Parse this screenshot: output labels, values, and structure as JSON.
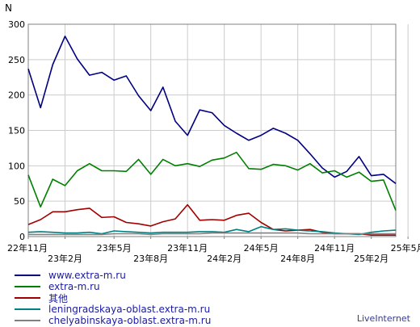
{
  "chart_data": {
    "type": "line",
    "ylabel": "N",
    "ylim": [
      0,
      300
    ],
    "y_ticks": [
      0,
      50,
      100,
      150,
      200,
      250,
      300
    ],
    "grid": true,
    "x_ticks_row1": [
      {
        "i": 0,
        "label": "22年11月"
      },
      {
        "i": 7,
        "label": "23年5月"
      },
      {
        "i": 13,
        "label": "23年11月"
      },
      {
        "i": 19,
        "label": "24年5月"
      },
      {
        "i": 25,
        "label": "24年11月"
      },
      {
        "i": 31,
        "label": "25年5月"
      }
    ],
    "x_ticks_row2": [
      {
        "i": 3,
        "label": "23年2月"
      },
      {
        "i": 10,
        "label": "23年8月"
      },
      {
        "i": 16,
        "label": "24年2月"
      },
      {
        "i": 22,
        "label": "24年8月"
      },
      {
        "i": 28,
        "label": "25年2月"
      }
    ],
    "series": [
      {
        "name": "www.extra-m.ru",
        "color": "#000080",
        "values": [
          237,
          182,
          243,
          283,
          251,
          228,
          232,
          221,
          227,
          199,
          178,
          211,
          163,
          143,
          179,
          175,
          157,
          146,
          136,
          143,
          153,
          146,
          136,
          117,
          97,
          84,
          92,
          113,
          86,
          88,
          75
        ]
      },
      {
        "name": "extra-m.ru",
        "color": "#008000",
        "values": [
          87,
          42,
          81,
          72,
          93,
          103,
          93,
          93,
          92,
          109,
          88,
          109,
          100,
          103,
          99,
          108,
          111,
          119,
          96,
          95,
          102,
          100,
          94,
          103,
          90,
          93,
          84,
          91,
          78,
          80,
          37
        ]
      },
      {
        "name": "其他",
        "color": "#a00000",
        "values": [
          17,
          24,
          35,
          35,
          38,
          40,
          27,
          28,
          20,
          18,
          15,
          21,
          25,
          45,
          23,
          24,
          23,
          30,
          33,
          20,
          10,
          8,
          9,
          10,
          6,
          4,
          4,
          4,
          2,
          2,
          2
        ]
      },
      {
        "name": "leningradskaya-oblast.extra-m.ru",
        "color": "#008080",
        "values": [
          6,
          7,
          6,
          5,
          5,
          6,
          4,
          8,
          7,
          6,
          5,
          6,
          6,
          6,
          7,
          7,
          6,
          10,
          7,
          14,
          10,
          11,
          9,
          8,
          7,
          5,
          4,
          3,
          6,
          8,
          9
        ]
      },
      {
        "name": "chelyabinskaya-oblast.extra-m.ru",
        "color": "#808080",
        "values": [
          3,
          3,
          3,
          3,
          3,
          3,
          3,
          4,
          4,
          4,
          3,
          4,
          4,
          4,
          4,
          5,
          5,
          5,
          5,
          5,
          5,
          5,
          5,
          4,
          4,
          4,
          4,
          4,
          4,
          4,
          4
        ]
      }
    ]
  },
  "brand": "LiveInternet"
}
